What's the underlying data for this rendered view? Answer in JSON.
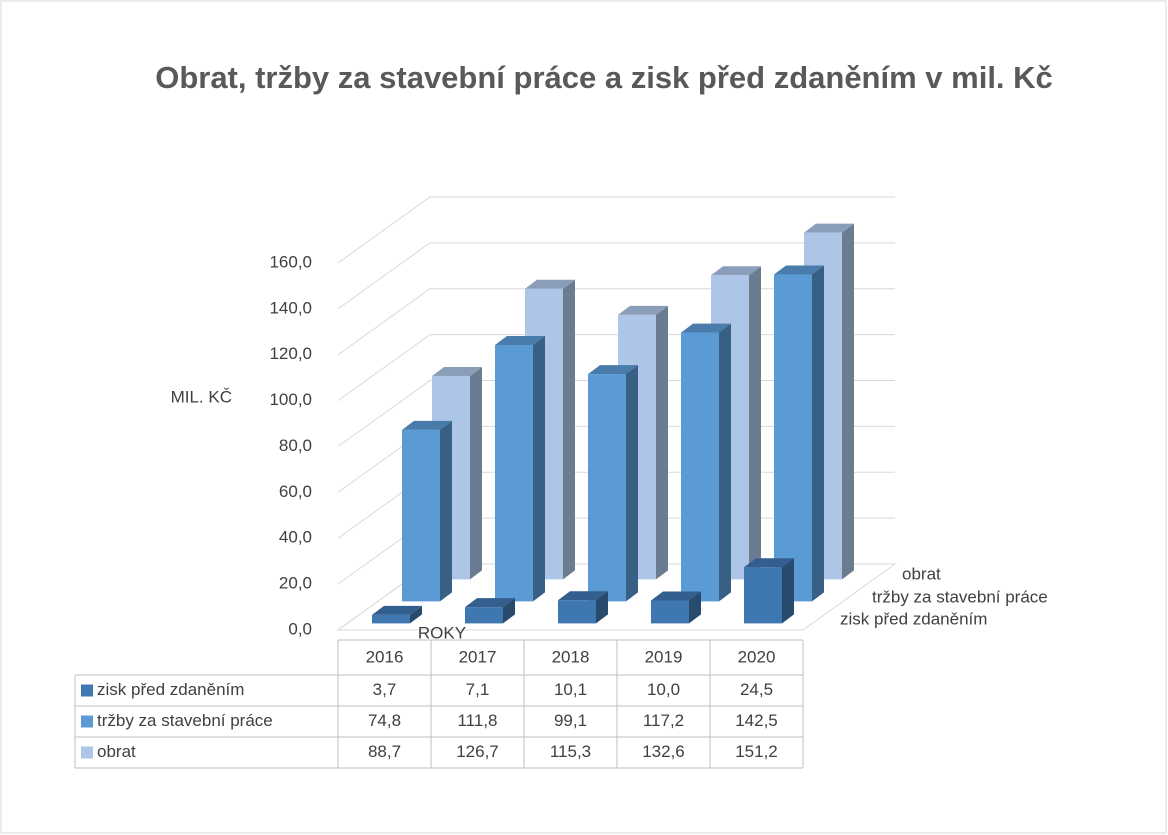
{
  "chart_data": {
    "type": "bar3d",
    "title": "Obrat, tržby za stavební práce a zisk před zdaněním v mil. Kč",
    "ylabel": "MIL. KČ",
    "xlabel": "ROKY",
    "categories": [
      "2016",
      "2017",
      "2018",
      "2019",
      "2020"
    ],
    "series": [
      {
        "name": "zisk před zdaněním",
        "color": "#3f77b0",
        "values": [
          3.7,
          7.1,
          10.1,
          10.0,
          24.5
        ],
        "value_labels": [
          "3,7",
          "7,1",
          "10,1",
          "10,0",
          "24,5"
        ]
      },
      {
        "name": "tržby za stavební práce",
        "color": "#5b9bd5",
        "values": [
          74.8,
          111.8,
          99.1,
          117.2,
          142.5
        ],
        "value_labels": [
          "74,8",
          "111,8",
          "99,1",
          "117,2",
          "142,5"
        ]
      },
      {
        "name": "obrat",
        "color": "#adc6e8",
        "values": [
          88.7,
          126.7,
          115.3,
          132.6,
          151.2
        ],
        "value_labels": [
          "88,7",
          "126,7",
          "115,3",
          "132,6",
          "151,2"
        ]
      }
    ],
    "ylim": [
      0,
      160
    ],
    "yticks": [
      {
        "value": 0,
        "label": "0,0"
      },
      {
        "value": 20,
        "label": "20,0"
      },
      {
        "value": 40,
        "label": "40,0"
      },
      {
        "value": 60,
        "label": "60,0"
      },
      {
        "value": 80,
        "label": "80,0"
      },
      {
        "value": 100,
        "label": "100,0"
      },
      {
        "value": 120,
        "label": "120,0"
      },
      {
        "value": 140,
        "label": "140,0"
      },
      {
        "value": 160,
        "label": "160,0"
      }
    ],
    "grid": true,
    "data_table": true
  }
}
